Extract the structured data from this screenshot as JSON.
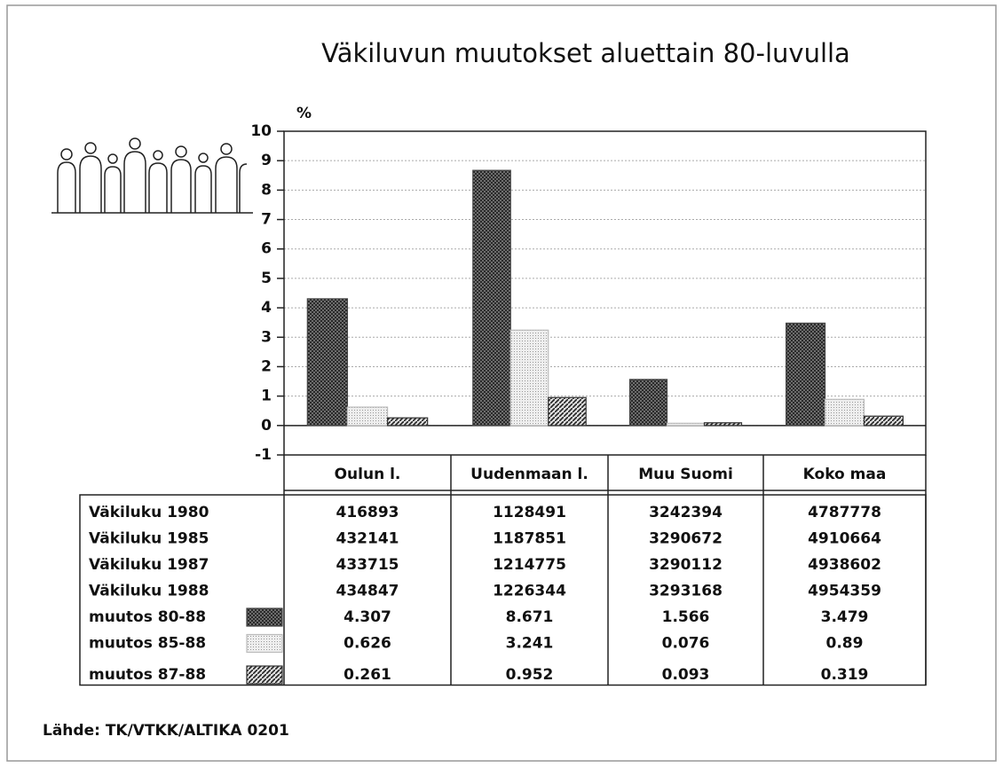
{
  "chart_data": {
    "type": "bar",
    "title": "Väkiluvun muutokset aluettain 80-luvulla",
    "y_label": "%",
    "categories": [
      "Oulun l.",
      "Uudenmaan l.",
      "Muu Suomi",
      "Koko maa"
    ],
    "series": [
      {
        "name": "muutos 80-88",
        "color": "#444444",
        "values": [
          4.307,
          8.671,
          1.566,
          3.479
        ]
      },
      {
        "name": "muutos 85-88",
        "color": "#bbbbbb",
        "values": [
          0.626,
          3.241,
          0.076,
          0.89
        ]
      },
      {
        "name": "muutos 87-88",
        "color": "#333333",
        "values": [
          0.261,
          0.952,
          0.093,
          0.319
        ]
      }
    ],
    "population_rows": [
      {
        "label": "Väkiluku 1980",
        "values": [
          416893,
          1128491,
          3242394,
          4787778
        ]
      },
      {
        "label": "Väkiluku 1985",
        "values": [
          432141,
          1187851,
          3290672,
          4910664
        ]
      },
      {
        "label": "Väkiluku 1987",
        "values": [
          433715,
          1214775,
          3290112,
          4938602
        ]
      },
      {
        "label": "Väkiluku 1988",
        "values": [
          434847,
          1226344,
          3293168,
          4954359
        ]
      }
    ],
    "ylim": [
      -1,
      10
    ],
    "yticks": [
      -1,
      0,
      1,
      2,
      3,
      4,
      5,
      6,
      7,
      8,
      9,
      10
    ],
    "grid": true,
    "source": "Lähde: TK/VTKK/ALTIKA 0201"
  }
}
